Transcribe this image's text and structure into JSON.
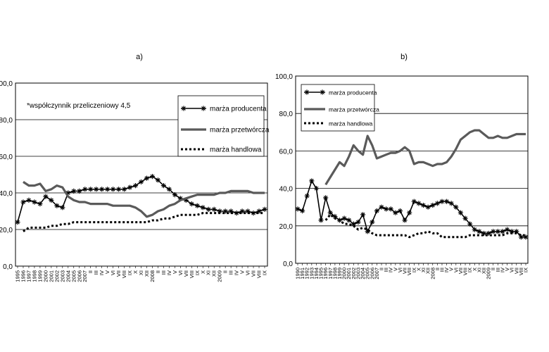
{
  "chart_data": [
    {
      "panel_label": "a)",
      "type": "line",
      "note": "*współczynnik przeliczeniowy 4,5",
      "ylim": [
        0,
        100
      ],
      "y_ticks": [
        "0,0",
        "20,0",
        "40,0",
        "60,0",
        "80,0",
        "100,0"
      ],
      "grid": true,
      "legend_position": "top-right",
      "x_labels": [
        "1995",
        "1996",
        "1997",
        "1998",
        "1999",
        "2000",
        "2001",
        "2002",
        "2003",
        "2004",
        "2005",
        "2006",
        "2007",
        "II",
        "III",
        "IV",
        "V",
        "VI",
        "VII",
        "VIII",
        "IX",
        "X",
        "XI",
        "XII",
        "2008",
        "II",
        "III",
        "IV",
        "V",
        "VI",
        "VII",
        "VIII",
        "IX",
        "X",
        "XI",
        "XII",
        "2009",
        "II",
        "III",
        "IV",
        "V",
        "VI",
        "VII",
        "VIII",
        "IX"
      ],
      "series": [
        {
          "name": "marża producenta",
          "style": "star",
          "color": "#000000",
          "values": [
            24,
            35,
            36,
            35,
            34,
            38,
            36,
            33,
            32,
            40,
            41,
            41,
            42,
            42,
            42,
            42,
            42,
            42,
            42,
            42,
            43,
            44,
            46,
            48,
            49,
            47,
            44,
            42,
            39,
            37,
            36,
            34,
            33,
            32,
            31,
            31,
            30,
            30,
            30,
            29,
            30,
            30,
            29,
            30,
            31
          ]
        },
        {
          "name": "marża przetwórcza",
          "style": "solid",
          "color": "#5a5a5a",
          "values": [
            null,
            46,
            44,
            44,
            45,
            41,
            42,
            44,
            43,
            38,
            36,
            35,
            35,
            34,
            34,
            34,
            34,
            33,
            33,
            33,
            33,
            32,
            30,
            27,
            28,
            30,
            31,
            33,
            34,
            36,
            37,
            38,
            39,
            39,
            39,
            39,
            40,
            40,
            41,
            41,
            41,
            41,
            40,
            40,
            40
          ]
        },
        {
          "name": "marża handlowa",
          "style": "dotted",
          "color": "#000000",
          "values": [
            null,
            19,
            21,
            21,
            21,
            21,
            22,
            22,
            23,
            23,
            24,
            24,
            24,
            24,
            24,
            24,
            24,
            24,
            24,
            24,
            24,
            24,
            24,
            24,
            25,
            25,
            26,
            26,
            27,
            28,
            28,
            28,
            28,
            29,
            29,
            29,
            29,
            29,
            29,
            29,
            29,
            29,
            29,
            29,
            29
          ]
        }
      ]
    },
    {
      "panel_label": "b)",
      "type": "line",
      "ylim": [
        0,
        100
      ],
      "y_ticks": [
        "0,0",
        "20,0",
        "40,0",
        "60,0",
        "80,0",
        "100,0"
      ],
      "grid": true,
      "legend_position": "top-left",
      "x_labels": [
        "1990",
        "1991",
        "1992",
        "1993",
        "1994",
        "1995",
        "1996",
        "1997",
        "1998",
        "1999",
        "2000",
        "2001",
        "2002",
        "2003",
        "2004",
        "2005",
        "2006",
        "2007",
        "II",
        "III",
        "IV",
        "V",
        "VI",
        "VII",
        "VIII",
        "IX",
        "X",
        "XI",
        "XII",
        "2008",
        "II",
        "III",
        "IV",
        "V",
        "VI",
        "VII",
        "VIII",
        "IX",
        "X",
        "XI",
        "XII",
        "2009",
        "II",
        "III",
        "IV",
        "V",
        "VI",
        "VII",
        "VIII",
        "IX"
      ],
      "series": [
        {
          "name": "marża producenta",
          "style": "star",
          "color": "#000000",
          "values": [
            29,
            28,
            36,
            44,
            40,
            23,
            35,
            27,
            25,
            23,
            24,
            23,
            21,
            22,
            26,
            17,
            22,
            28,
            30,
            29,
            29,
            27,
            28,
            23,
            27,
            33,
            32,
            31,
            30,
            31,
            32,
            33,
            33,
            32,
            30,
            27,
            24,
            21,
            18,
            17,
            16,
            16,
            17,
            17,
            17,
            18,
            17,
            17,
            14,
            14
          ]
        },
        {
          "name": "marża przetwórcza",
          "style": "solid",
          "color": "#5a5a5a",
          "values": [
            null,
            null,
            null,
            null,
            null,
            null,
            42,
            46,
            50,
            54,
            52,
            57,
            63,
            60,
            58,
            68,
            63,
            56,
            57,
            58,
            59,
            59,
            60,
            62,
            60,
            53,
            54,
            54,
            53,
            52,
            53,
            53,
            54,
            57,
            61,
            66,
            68,
            70,
            71,
            71,
            69,
            67,
            67,
            68,
            67,
            67,
            68,
            69,
            69,
            69
          ]
        },
        {
          "name": "marża handlowa",
          "style": "dotted",
          "color": "#000000",
          "values": [
            null,
            null,
            null,
            null,
            null,
            null,
            23,
            26,
            24,
            23,
            21,
            21,
            20,
            18,
            19,
            18,
            16,
            15,
            15,
            15,
            15,
            15,
            15,
            15,
            14,
            15,
            16,
            16,
            17,
            16,
            16,
            14,
            14,
            14,
            14,
            14,
            14,
            15,
            15,
            15,
            15,
            15,
            15,
            15,
            15,
            16,
            16,
            16,
            15,
            15
          ]
        }
      ]
    }
  ]
}
